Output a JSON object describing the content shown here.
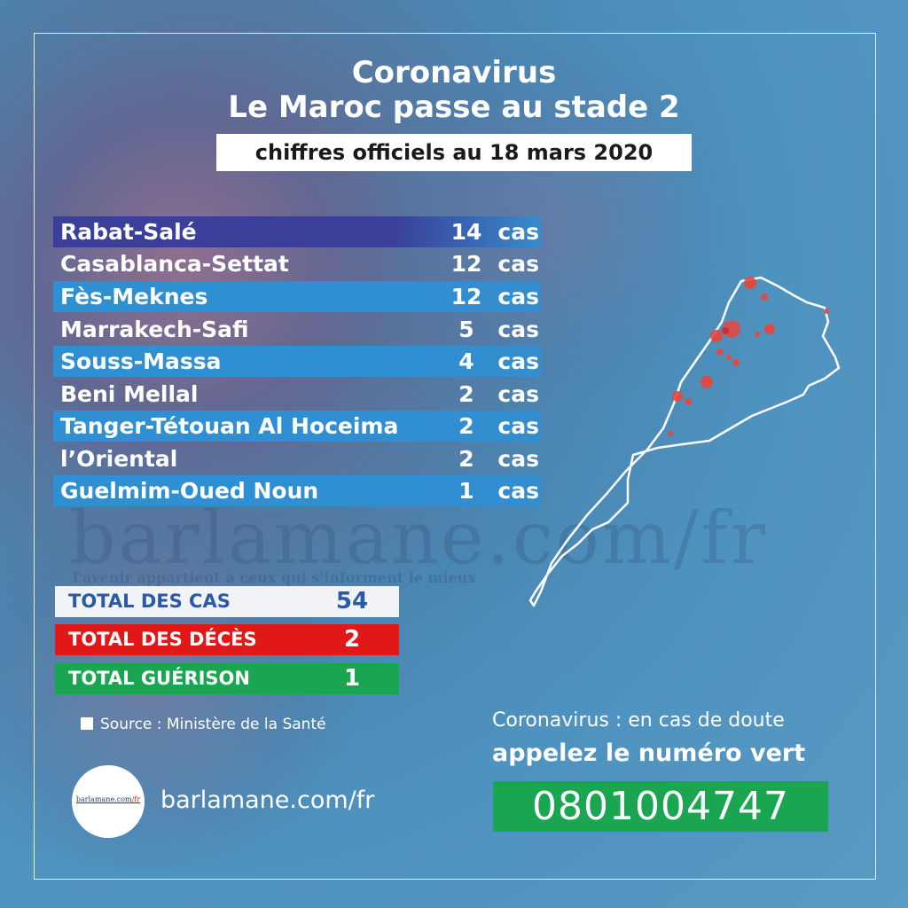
{
  "title": {
    "line1": "Coronavirus",
    "line2": "Le Maroc passe au stade 2"
  },
  "subtitle": "chiffres officiels au 18 mars 2020",
  "regions": [
    {
      "name": "Rabat-Salé",
      "num": "14",
      "unit": "cas",
      "color": "#3b3f9a"
    },
    {
      "name": "Casablanca-Settat",
      "num": "12",
      "unit": "cas",
      "color": "transparent"
    },
    {
      "name": "Fès-Meknes",
      "num": "12",
      "unit": "cas",
      "color": "#2f8fd3"
    },
    {
      "name": "Marrakech-Safi",
      "num": "5",
      "unit": "cas",
      "color": "transparent"
    },
    {
      "name": "Souss-Massa",
      "num": "4",
      "unit": "cas",
      "color": "#2f8fd3"
    },
    {
      "name": "Beni Mellal",
      "num": "2",
      "unit": "cas",
      "color": "transparent"
    },
    {
      "name": "Tanger-Tétouan Al Hoceima",
      "num": "2",
      "unit": "cas",
      "color": "#2f8fd3"
    },
    {
      "name": "l’Oriental",
      "num": "2",
      "unit": "cas",
      "color": "transparent"
    },
    {
      "name": "Guelmim-Oued Noun",
      "num": "1",
      "unit": "cas",
      "color": "#2f8fd3"
    }
  ],
  "totals": {
    "cas": {
      "label": "TOTAL DES CAS",
      "value": "54"
    },
    "deces": {
      "label": "TOTAL DES DÉCÈS",
      "value": "2"
    },
    "guerison": {
      "label": "TOTAL GUÉRISON",
      "value": "1"
    }
  },
  "watermark": {
    "text": "barlamane.com/fr",
    "tagline": "l'avenir appartient à ceux qui s'informent le mieux"
  },
  "source": "Source : Ministère de la Santé",
  "logo": {
    "main": "barlamane.com",
    "suffix": "/fr"
  },
  "site": "barlamane.com/fr",
  "help": {
    "line1": "Coronavirus : en cas de doute",
    "line2": "appelez le numéro vert",
    "phone": "0801004747"
  },
  "colors": {
    "highlight_row": "#2f8fd3",
    "top_row": "#3b3f9a",
    "deces": "#e11818",
    "guerison": "#1aa650",
    "total_cas_text": "#2a5aa6",
    "map_dot": "#e8473a"
  }
}
